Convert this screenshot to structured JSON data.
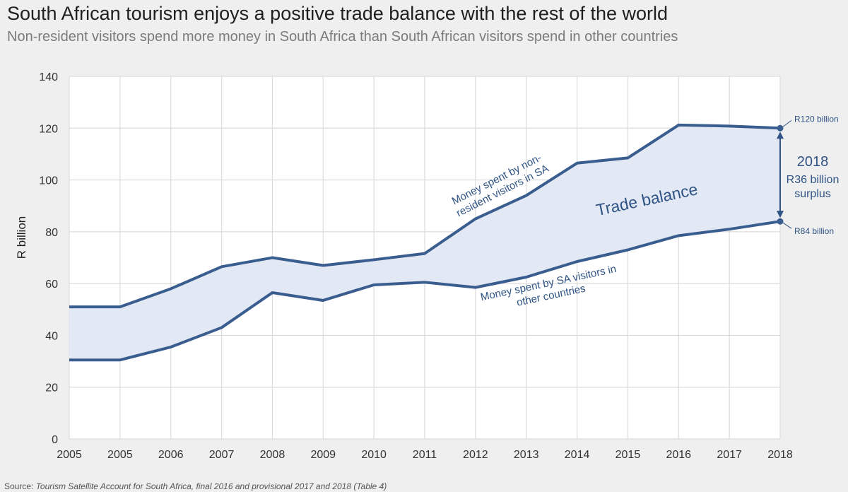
{
  "header": {
    "title": "South African tourism enjoys a positive trade balance with the rest of the world",
    "subtitle": "Non-resident visitors spend more money in South Africa than South African visitors spend in other countries"
  },
  "footer": {
    "source_label": "Source:",
    "source_text": "Tourism Satellite Account for South Africa, final 2016 and provisional 2017 and 2018 (Table 4)"
  },
  "colors": {
    "line": "#3a5d8f",
    "fill": "#e3e9f4",
    "annotation": "#2f5384",
    "grid": "#dcdcdc",
    "plot_bg": "#ffffff"
  },
  "chart_data": {
    "type": "area",
    "title": "South African tourism enjoys a positive trade balance with the rest of the world",
    "xlabel": "",
    "ylabel": "R billion",
    "ylim": [
      0,
      140
    ],
    "yticks": [
      0,
      20,
      40,
      60,
      80,
      100,
      120,
      140
    ],
    "grid": true,
    "categories": [
      "2005",
      "2005",
      "2006",
      "2007",
      "2008",
      "2009",
      "2010",
      "2011",
      "2012",
      "2013",
      "2014",
      "2015",
      "2016",
      "2017",
      "2018"
    ],
    "series": [
      {
        "name": "Money spent by non-resident visitors in SA",
        "values": [
          51,
          51,
          58,
          66.5,
          70,
          67,
          69.2,
          71.6,
          85,
          94,
          106.5,
          108.5,
          121.2,
          120.8,
          120
        ]
      },
      {
        "name": "Money spent by SA visitors in other countries",
        "values": [
          30.5,
          30.5,
          35.5,
          43,
          56.5,
          53.5,
          59.5,
          60.5,
          58.5,
          62.5,
          68.5,
          73,
          78.5,
          81,
          84
        ]
      }
    ],
    "annotations": {
      "band_label": "Trade balance",
      "upper_line_label": [
        "Money spent by non-",
        "resident visitors in SA"
      ],
      "lower_line_label": [
        "Money spent by SA visitors in",
        "other countries"
      ],
      "end_upper": "R120 billion",
      "end_lower": "R84 billion",
      "surplus_year": "2018",
      "surplus_lines": [
        "R36 billion",
        "surplus"
      ]
    }
  }
}
